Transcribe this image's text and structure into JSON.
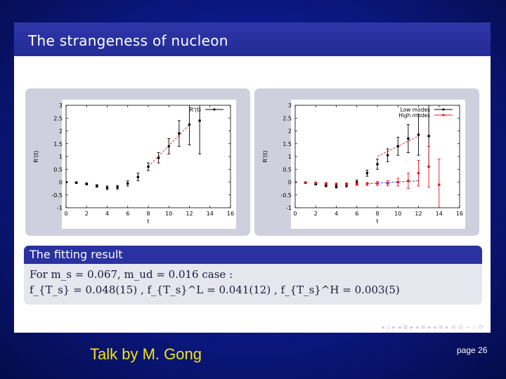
{
  "slide": {
    "title": "The strangeness of nucleon",
    "fitting": {
      "title": "The fitting result",
      "line1": "For m_s = 0.067,  m_ud = 0.016 case :",
      "line2": "f_{T_s} = 0.048(15) ,  f_{T_s}^L = 0.041(12) ,  f_{T_s}^H = 0.003(5)"
    },
    "nav_symbols": "◂ ▫ ▸ ◂ ≣ ▸ ◂ ≡ ▸ ◂ ≡ ▸ ≡ ⊖ ∽ ⌕ ⟳"
  },
  "footer": {
    "talk": "Talk by M. Gong",
    "page": "page 26"
  },
  "colors": {
    "background": "#0c1a8e",
    "header": "#2a31a0",
    "footer_talk": "#f1e316",
    "series_black": "#000000",
    "series_red": "#e8141b"
  },
  "chart_data": [
    {
      "type": "scatter",
      "xlabel": "t",
      "ylabel": "R'(t)",
      "xlim": [
        0,
        16
      ],
      "ylim": [
        -1,
        3
      ],
      "xticks": [
        0,
        2,
        4,
        6,
        8,
        10,
        12,
        14,
        16
      ],
      "yticks": [
        -1,
        -0.5,
        0,
        0.5,
        1,
        1.5,
        2,
        2.5,
        3
      ],
      "legend_position": "top-right",
      "series": [
        {
          "name": "R'(t)",
          "color": "#000000",
          "x": [
            0,
            1,
            2,
            3,
            4,
            5,
            6,
            7,
            8,
            9,
            10,
            11,
            12,
            13
          ],
          "y": [
            0,
            -0.02,
            -0.07,
            -0.15,
            -0.22,
            -0.2,
            -0.05,
            0.2,
            0.6,
            0.95,
            1.4,
            1.9,
            2.25,
            2.4
          ],
          "err": [
            0.02,
            0.03,
            0.04,
            0.05,
            0.07,
            0.07,
            0.1,
            0.15,
            0.15,
            0.2,
            0.3,
            0.5,
            0.8,
            1.3
          ]
        }
      ],
      "fits": [
        {
          "color": "#e8141b",
          "x": [
            8,
            12
          ],
          "y": [
            0.6,
            2.25
          ]
        }
      ]
    },
    {
      "type": "scatter",
      "xlabel": "t",
      "ylabel": "R'(t)",
      "xlim": [
        0,
        16
      ],
      "ylim": [
        -1,
        3
      ],
      "xticks": [
        0,
        2,
        4,
        6,
        8,
        10,
        12,
        14,
        16
      ],
      "yticks": [
        -1,
        -0.5,
        0,
        0.5,
        1,
        1.5,
        2,
        2.5,
        3
      ],
      "legend_position": "top-right",
      "series": [
        {
          "name": "Low modes",
          "color": "#000000",
          "x": [
            0,
            1,
            2,
            3,
            4,
            5,
            6,
            7,
            8,
            9,
            10,
            11,
            12,
            13
          ],
          "y": [
            0,
            -0.02,
            -0.07,
            -0.13,
            -0.17,
            -0.12,
            0,
            0.35,
            0.7,
            1.05,
            1.4,
            1.7,
            1.85,
            1.8
          ],
          "err": [
            0.02,
            0.03,
            0.04,
            0.05,
            0.06,
            0.07,
            0.08,
            0.12,
            0.2,
            0.25,
            0.35,
            0.55,
            0.8,
            1.2
          ]
        },
        {
          "name": "High modes",
          "color": "#e8141b",
          "x": [
            0,
            1,
            2,
            3,
            4,
            5,
            6,
            7,
            8,
            9,
            10,
            11,
            12,
            13,
            14
          ],
          "y": [
            0,
            -0.01,
            -0.03,
            -0.05,
            -0.07,
            -0.07,
            -0.08,
            -0.07,
            -0.05,
            -0.04,
            0,
            0.05,
            0.35,
            0.6,
            -0.1
          ],
          "err": [
            0.01,
            0.02,
            0.02,
            0.03,
            0.03,
            0.04,
            0.05,
            0.06,
            0.08,
            0.1,
            0.15,
            0.3,
            0.5,
            0.8,
            1.0
          ]
        }
      ],
      "fits": [
        {
          "color": "#e8141b",
          "x": [
            8,
            12
          ],
          "y": [
            1.0,
            1.8
          ]
        },
        {
          "color": "#1a1aff",
          "x": [
            7,
            12
          ],
          "y": [
            -0.06,
            0.05
          ]
        }
      ]
    }
  ]
}
